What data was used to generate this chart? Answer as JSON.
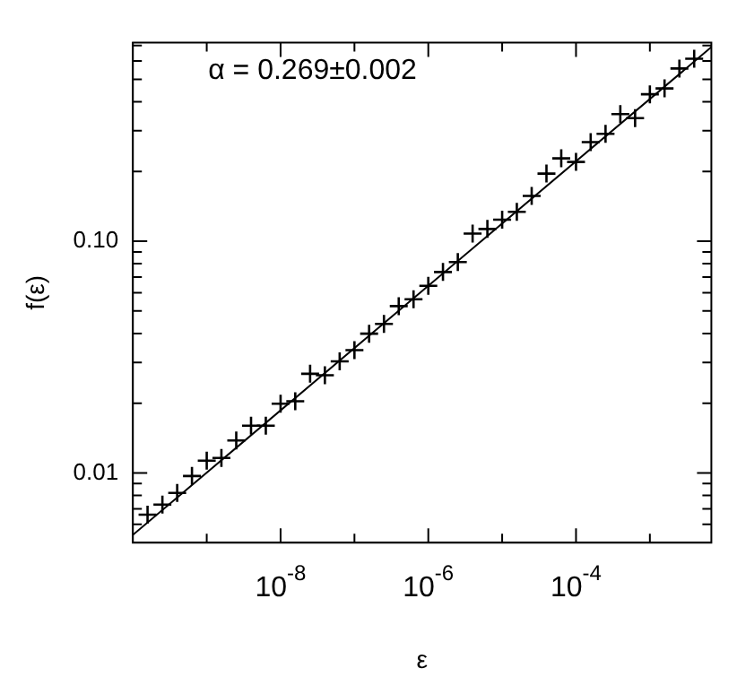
{
  "chart_data": {
    "type": "scatter",
    "xlabel": "ε",
    "ylabel": "f(ε)",
    "log": "xy",
    "grid": false,
    "legend": false,
    "marker": "cross",
    "annotations": [
      "α = 0.269±0.002"
    ],
    "xlim": [
      1e-10,
      0.0068
    ],
    "ylim": [
      0.005,
      0.72
    ],
    "xticks": [
      {
        "value": 1e-09,
        "label": null
      },
      {
        "value": 1e-08,
        "label": "10$^{-8}$"
      },
      {
        "value": 1e-07,
        "label": null
      },
      {
        "value": 1e-06,
        "label": "10$^{-6}$"
      },
      {
        "value": 1e-05,
        "label": null
      },
      {
        "value": 0.0001,
        "label": "10$^{-4}$"
      },
      {
        "value": 0.001,
        "label": null
      }
    ],
    "yticks": [
      {
        "value": 0.006,
        "label": null
      },
      {
        "value": 0.007,
        "label": null
      },
      {
        "value": 0.008,
        "label": null
      },
      {
        "value": 0.009,
        "label": null
      },
      {
        "value": 0.01,
        "label": "0.01"
      },
      {
        "value": 0.02,
        "label": null
      },
      {
        "value": 0.03,
        "label": null
      },
      {
        "value": 0.04,
        "label": null
      },
      {
        "value": 0.05,
        "label": null
      },
      {
        "value": 0.06,
        "label": null
      },
      {
        "value": 0.07,
        "label": null
      },
      {
        "value": 0.08,
        "label": null
      },
      {
        "value": 0.09,
        "label": null
      },
      {
        "value": 0.1,
        "label": "0.10"
      },
      {
        "value": 0.2,
        "label": null
      },
      {
        "value": 0.3,
        "label": null
      },
      {
        "value": 0.4,
        "label": null
      },
      {
        "value": 0.5,
        "label": null
      },
      {
        "value": 0.6,
        "label": null
      },
      {
        "value": 0.7,
        "label": null
      }
    ],
    "series": [
      {
        "type": "scatter",
        "color": "#000000",
        "x": [
          1.58e-10,
          2.51e-10,
          3.98e-10,
          6.31e-10,
          1e-09,
          1.58e-09,
          2.51e-09,
          3.98e-09,
          6.31e-09,
          1e-08,
          1.58e-08,
          2.51e-08,
          3.98e-08,
          6.31e-08,
          1e-07,
          1.58e-07,
          2.51e-07,
          3.98e-07,
          6.31e-07,
          1e-06,
          1.58e-06,
          2.51e-06,
          3.98e-06,
          6.31e-06,
          1e-05,
          1.58e-05,
          2.51e-05,
          3.98e-05,
          6.31e-05,
          0.0001,
          0.000158,
          0.000251,
          0.000398,
          0.000631,
          0.001,
          0.00158,
          0.00251,
          0.00398
        ],
        "values": [
          0.0066,
          0.0073,
          0.0082,
          0.0097,
          0.0113,
          0.0116,
          0.0138,
          0.016,
          0.016,
          0.0199,
          0.0204,
          0.0268,
          0.0264,
          0.0303,
          0.0339,
          0.0399,
          0.044,
          0.0525,
          0.0562,
          0.0642,
          0.0737,
          0.0813,
          0.108,
          0.113,
          0.124,
          0.134,
          0.157,
          0.196,
          0.228,
          0.22,
          0.268,
          0.291,
          0.354,
          0.34,
          0.431,
          0.457,
          0.557,
          0.614
        ]
      },
      {
        "type": "line",
        "color": "#000000",
        "marker": "none",
        "x": [
          1e-10,
          0.0068
        ],
        "values": [
          0.0054,
          0.689
        ]
      }
    ]
  }
}
